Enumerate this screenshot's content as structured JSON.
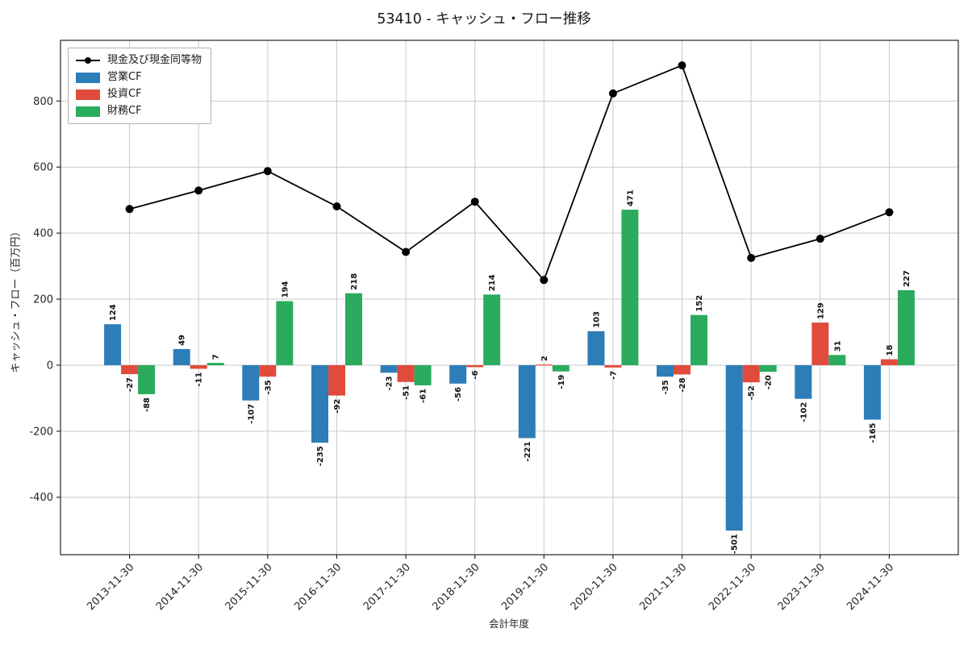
{
  "chart_data": {
    "type": "bar+line",
    "title": "53410 - キャッシュ・フロー推移",
    "xlabel": "会計年度",
    "ylabel": "キャッシュ・フロー（百万円）",
    "categories": [
      "2013-11-30",
      "2014-11-30",
      "2015-11-30",
      "2016-11-30",
      "2017-11-30",
      "2018-11-30",
      "2019-11-30",
      "2020-11-30",
      "2021-11-30",
      "2022-11-30",
      "2023-11-30",
      "2024-11-30"
    ],
    "bar_series": [
      {
        "name": "営業CF",
        "color": "#2d7db8",
        "values": [
          124,
          49,
          -107,
          -235,
          -23,
          -56,
          -221,
          103,
          -35,
          -501,
          -102,
          -165
        ]
      },
      {
        "name": "投資CF",
        "color": "#e14b3c",
        "values": [
          -27,
          -11,
          -35,
          -92,
          -51,
          -6,
          2,
          -7,
          -28,
          -52,
          129,
          18
        ]
      },
      {
        "name": "財務CF",
        "color": "#2aab5e",
        "values": [
          -88,
          7,
          194,
          218,
          -61,
          214,
          -19,
          471,
          152,
          -20,
          31,
          227
        ]
      }
    ],
    "line_series": {
      "name": "現金及び現金同等物",
      "color": "#000000",
      "values": [
        473,
        529,
        588,
        481,
        343,
        495,
        258,
        823,
        908,
        325,
        383,
        463
      ]
    },
    "yticks": [
      800,
      600,
      400,
      200,
      0,
      -200,
      -400
    ],
    "ylim": [
      -574,
      984
    ],
    "grid": true,
    "legend_position": "upper-left",
    "grid_color": "#c9c9c9",
    "spine_color": "#262626",
    "tick_label_color": "#262626"
  }
}
